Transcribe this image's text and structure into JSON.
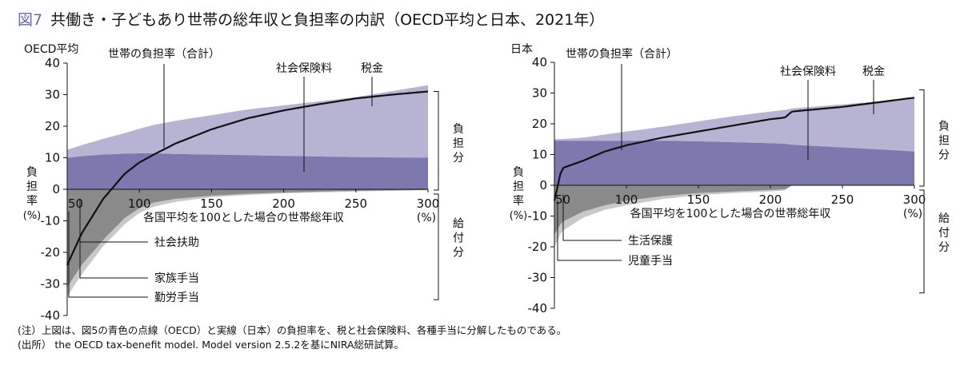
{
  "title": {
    "figure_no": "図7",
    "text": "共働き・子どもあり世帯の総年収と負担率の内訳（OECD平均と日本、2021年）"
  },
  "colors": {
    "tax": "#b7b3d3",
    "social_insurance": "#7d78ad",
    "allowance_outer": "#c8c8c8",
    "allowance_inner": "#8a8a8a",
    "total_line": "#111111"
  },
  "notes": [
    "(注）上図は、図5の青色の点線（OECD）と実線（日本）の負担率を、税と社会保険料、各種手当に分解したものである。",
    "(出所） the OECD tax-benefit model. Model version 2.5.2を基にNIRA総研試算。"
  ],
  "chart_data": [
    {
      "type": "area",
      "panel_label": "OECD平均",
      "xlabel": "各国平均を100とした場合の世帯総年収",
      "x_unit": "(%)",
      "ylabel": "負担率(%)",
      "xlim": [
        50,
        300
      ],
      "ylim": [
        -40,
        40
      ],
      "xticks": [
        50,
        100,
        150,
        200,
        250,
        300
      ],
      "yticks": [
        -40,
        -30,
        -20,
        -10,
        0,
        10,
        20,
        30,
        40
      ],
      "x": [
        50,
        60,
        75,
        90,
        100,
        110,
        125,
        150,
        175,
        200,
        225,
        250,
        275,
        300
      ],
      "series": [
        {
          "name": "社会保険料",
          "values": [
            10,
            10.5,
            11,
            11.3,
            11.4,
            11.4,
            11.2,
            11,
            10.8,
            10.6,
            10.4,
            10.2,
            10.1,
            10
          ]
        },
        {
          "name": "税金",
          "values": [
            2.5,
            3.5,
            5,
            6.5,
            7.8,
            9,
            10.5,
            12.5,
            14.5,
            16,
            17.5,
            19,
            21,
            23
          ]
        },
        {
          "name": "各種手当（外側）",
          "values": [
            -34,
            -27,
            -18,
            -11,
            -7.5,
            -5.5,
            -4,
            -2.5,
            -1.8,
            -1.3,
            -1,
            -0.7,
            -0.5,
            -0.3
          ]
        },
        {
          "name": "各種手当（内側）",
          "values": [
            -31,
            -24,
            -16,
            -9,
            -6,
            -4.2,
            -3,
            -2,
            -1.4,
            -1,
            -0.7,
            -0.5,
            -0.3,
            -0.2
          ]
        },
        {
          "name": "世帯の負担率（合計）",
          "values": [
            -24,
            -14,
            -3,
            5,
            8.5,
            11,
            14.5,
            19,
            22.5,
            25,
            27,
            28.8,
            30,
            31
          ]
        }
      ],
      "annotations": {
        "total": "世帯の負担率（合計）",
        "social_insurance": "社会保険料",
        "tax": "税金",
        "bracket_burden": "負担分",
        "bracket_benefit": "給付分",
        "benefit_labels": [
          "社会扶助",
          "家族手当",
          "勤労手当"
        ]
      }
    },
    {
      "type": "area",
      "panel_label": "日本",
      "xlabel": "各国平均を100とした場合の世帯総年収",
      "x_unit": "(%)",
      "ylabel": "負担率(%)",
      "xlim": [
        50,
        300
      ],
      "ylim": [
        -40,
        40
      ],
      "xticks": [
        50,
        100,
        150,
        200,
        250,
        300
      ],
      "yticks": [
        -40,
        -30,
        -20,
        -10,
        0,
        10,
        20,
        30,
        40
      ],
      "x": [
        50,
        55,
        70,
        85,
        100,
        125,
        150,
        175,
        200,
        210,
        215,
        250,
        275,
        300
      ],
      "series": [
        {
          "name": "社会保険料",
          "values": [
            14.5,
            14.5,
            14.5,
            14.5,
            14.5,
            14.5,
            14.3,
            14,
            13.7,
            13.5,
            13.2,
            12.3,
            11.7,
            11
          ]
        },
        {
          "name": "税金",
          "values": [
            0.5,
            0.5,
            1,
            2,
            3,
            4.5,
            6.5,
            8.5,
            10.3,
            11,
            11.8,
            14,
            15.6,
            17.5
          ]
        },
        {
          "name": "各種手当（外側）",
          "values": [
            -20,
            -15,
            -10.5,
            -8,
            -6.5,
            -4.5,
            -3.2,
            -2.5,
            -2,
            -1.7,
            0,
            0,
            0,
            0
          ]
        },
        {
          "name": "各種手当（内側）",
          "values": [
            -16,
            -12,
            -8.5,
            -6.5,
            -5,
            -3.5,
            -2.5,
            -2,
            -1.5,
            -1.3,
            0,
            0,
            0,
            0
          ]
        },
        {
          "name": "世帯の負担率（合計）",
          "values": [
            -5,
            5.5,
            8,
            11,
            13,
            15.5,
            17.5,
            19.5,
            21.5,
            22,
            24,
            25.5,
            27,
            28.5
          ]
        }
      ],
      "annotations": {
        "total": "世帯の負担率（合計）",
        "social_insurance": "社会保険料",
        "tax": "税金",
        "bracket_burden": "負担分",
        "bracket_benefit": "給付分",
        "benefit_labels": [
          "生活保護",
          "児童手当"
        ]
      }
    }
  ]
}
